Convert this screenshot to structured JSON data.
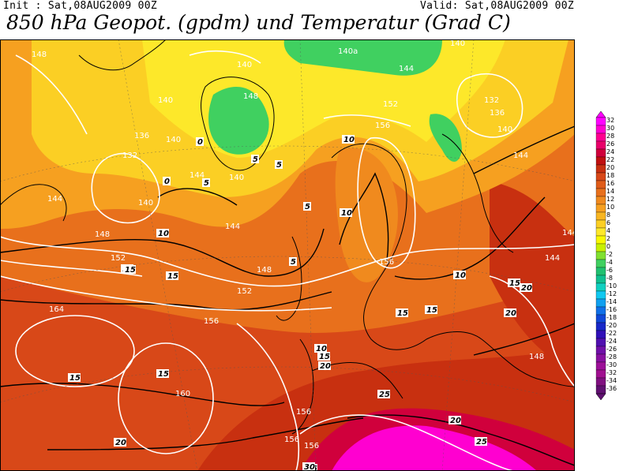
{
  "header": {
    "init": "Init : Sat,08AUG2009 00Z",
    "valid": "Valid: Sat,08AUG2009 00Z",
    "title": "850 hPa Geopot. (gpdm) und Temperatur (Grad C)"
  },
  "colorbar": {
    "labels": [
      "32",
      "30",
      "28",
      "26",
      "24",
      "22",
      "20",
      "18",
      "16",
      "14",
      "12",
      "10",
      "8",
      "6",
      "4",
      "2",
      "0",
      "-2",
      "-4",
      "-6",
      "-8",
      "-10",
      "-12",
      "-14",
      "-16",
      "-18",
      "-20",
      "-22",
      "-24",
      "-26",
      "-28",
      "-30",
      "-32",
      "-34",
      "-36"
    ],
    "colors": [
      "#ff00ff",
      "#ff00d0",
      "#ff0090",
      "#e8006a",
      "#d0003c",
      "#c01010",
      "#c83010",
      "#d84818",
      "#e05c1a",
      "#e8701c",
      "#f08a1e",
      "#f6a020",
      "#f8b622",
      "#fbcf24",
      "#fde82a",
      "#f8f800",
      "#c8f000",
      "#80e030",
      "#40d060",
      "#20c070",
      "#10c090",
      "#10d0c0",
      "#10c8f0",
      "#10a0f0",
      "#1070e8",
      "#1048d8",
      "#1828c8",
      "#3010b8",
      "#5010b0",
      "#7010a8",
      "#8810a0",
      "#9c1098",
      "#a01090",
      "#801080",
      "#601070"
    ],
    "top_arrow_color": "#ff00ff",
    "bottom_arrow_color": "#601070"
  },
  "map": {
    "geopotential_labels": [
      {
        "text": "148"
      },
      {
        "text": "140"
      },
      {
        "text": "140"
      },
      {
        "text": "140"
      },
      {
        "text": "140a"
      },
      {
        "text": "144"
      },
      {
        "text": "148"
      },
      {
        "text": "152"
      },
      {
        "text": "156"
      },
      {
        "text": "136"
      },
      {
        "text": "132"
      },
      {
        "text": "144"
      },
      {
        "text": "140"
      },
      {
        "text": "144"
      },
      {
        "text": "140"
      },
      {
        "text": "144"
      },
      {
        "text": "148"
      },
      {
        "text": "152"
      },
      {
        "text": "148"
      },
      {
        "text": "156"
      },
      {
        "text": "164"
      },
      {
        "text": "152"
      },
      {
        "text": "156"
      },
      {
        "text": "160"
      },
      {
        "text": "156"
      },
      {
        "text": "156"
      },
      {
        "text": "156"
      },
      {
        "text": "148"
      },
      {
        "text": "144"
      },
      {
        "text": "144"
      },
      {
        "text": "140"
      },
      {
        "text": "132"
      },
      {
        "text": "136"
      },
      {
        "text": "140"
      },
      {
        "text": "144"
      }
    ],
    "temperature_labels": [
      {
        "text": "10"
      },
      {
        "text": "15"
      },
      {
        "text": "15"
      },
      {
        "text": "15"
      },
      {
        "text": "15"
      },
      {
        "text": "20"
      },
      {
        "text": "15"
      },
      {
        "text": "20"
      },
      {
        "text": "25"
      },
      {
        "text": "25"
      },
      {
        "text": "20"
      },
      {
        "text": "25"
      },
      {
        "text": "15"
      },
      {
        "text": "10"
      },
      {
        "text": "10"
      },
      {
        "text": "10"
      },
      {
        "text": "15"
      },
      {
        "text": "20"
      },
      {
        "text": "20"
      },
      {
        "text": "15"
      },
      {
        "text": "5"
      },
      {
        "text": "5"
      },
      {
        "text": "5"
      },
      {
        "text": "0"
      },
      {
        "text": "0"
      },
      {
        "text": "5"
      },
      {
        "text": "5"
      },
      {
        "text": "10"
      },
      {
        "text": "15"
      },
      {
        "text": "30"
      }
    ]
  }
}
